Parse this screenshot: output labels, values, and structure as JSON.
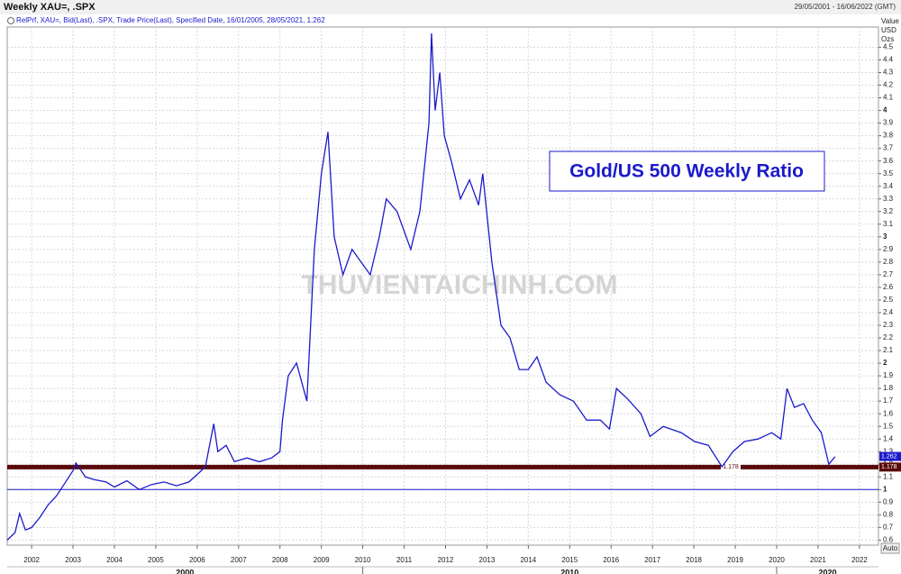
{
  "header": {
    "title": "Weekly XAU=, .SPX",
    "date_range": "29/05/2001 - 16/06/2022 (GMT)"
  },
  "chart_data": {
    "type": "line",
    "title": "Gold/US 500 Weekly Ratio",
    "legend_text": "RelPrf, XAU=, Bid(Last), .SPX, Trade Price(Last), Specified Date, 16/01/2005, 28/05/2021, 1.262",
    "y_axis_label": [
      "Value",
      "USD",
      "Ozs"
    ],
    "watermark": "THUVIENTAICHINH.COM",
    "scale_mode": "Auto",
    "grid": true,
    "xlim": [
      2001.41,
      2022.46
    ],
    "xticks": [
      2002,
      2003,
      2004,
      2005,
      2006,
      2007,
      2008,
      2009,
      2010,
      2011,
      2012,
      2013,
      2014,
      2015,
      2016,
      2017,
      2018,
      2019,
      2020,
      2021,
      2022
    ],
    "decades": [
      2000,
      2010,
      2020
    ],
    "ylim": [
      0.56,
      4.66
    ],
    "yticks": [
      0.6,
      0.7,
      0.8,
      0.9,
      1,
      1.1,
      1.2,
      1.3,
      1.4,
      1.5,
      1.6,
      1.7,
      1.8,
      1.9,
      2,
      2.1,
      2.2,
      2.3,
      2.4,
      2.5,
      2.6,
      2.7,
      2.8,
      2.9,
      3,
      3.1,
      3.2,
      3.3,
      3.4,
      3.5,
      3.6,
      3.7,
      3.8,
      3.9,
      4,
      4.1,
      4.2,
      4.3,
      4.4,
      4.5
    ],
    "baseline": 1,
    "support_level": 1.178,
    "last_value": 1.262,
    "series": [
      {
        "name": "Gold/US 500",
        "color": "#1a1acc",
        "x": [
          2001.41,
          2001.6,
          2001.71,
          2001.85,
          2002.0,
          2002.2,
          2002.4,
          2002.6,
          2002.8,
          2003.0,
          2003.07,
          2003.3,
          2003.5,
          2003.8,
          2004.0,
          2004.3,
          2004.6,
          2004.9,
          2005.2,
          2005.5,
          2005.8,
          2006.0,
          2006.2,
          2006.4,
          2006.5,
          2006.7,
          2006.9,
          2007.2,
          2007.5,
          2007.8,
          2008.0,
          2008.06,
          2008.2,
          2008.4,
          2008.65,
          2008.83,
          2009.0,
          2009.16,
          2009.31,
          2009.52,
          2009.74,
          2009.96,
          2010.18,
          2010.4,
          2010.57,
          2010.83,
          2011.16,
          2011.38,
          2011.6,
          2011.66,
          2011.75,
          2011.86,
          2011.97,
          2012.14,
          2012.36,
          2012.58,
          2012.8,
          2012.9,
          2013.12,
          2013.34,
          2013.56,
          2013.78,
          2014.0,
          2014.21,
          2014.43,
          2014.76,
          2015.09,
          2015.41,
          2015.74,
          2015.96,
          2016.13,
          2016.39,
          2016.72,
          2016.94,
          2017.26,
          2017.7,
          2018.02,
          2018.35,
          2018.68,
          2018.94,
          2019.22,
          2019.55,
          2019.88,
          2020.1,
          2020.25,
          2020.43,
          2020.65,
          2020.86,
          2021.08,
          2021.26,
          2021.41
        ],
        "values": [
          0.6,
          0.66,
          0.81,
          0.68,
          0.7,
          0.78,
          0.88,
          0.95,
          1.05,
          1.15,
          1.21,
          1.1,
          1.08,
          1.06,
          1.02,
          1.07,
          1.0,
          1.04,
          1.06,
          1.03,
          1.06,
          1.12,
          1.18,
          1.52,
          1.3,
          1.35,
          1.22,
          1.25,
          1.22,
          1.25,
          1.3,
          1.55,
          1.9,
          2.0,
          1.7,
          2.9,
          3.5,
          3.83,
          3.0,
          2.7,
          2.9,
          2.8,
          2.7,
          3.0,
          3.3,
          3.2,
          2.9,
          3.2,
          3.9,
          4.61,
          4.0,
          4.3,
          3.8,
          3.6,
          3.3,
          3.45,
          3.25,
          3.5,
          2.8,
          2.3,
          2.2,
          1.95,
          1.95,
          2.05,
          1.85,
          1.75,
          1.7,
          1.55,
          1.55,
          1.48,
          1.8,
          1.72,
          1.6,
          1.42,
          1.5,
          1.45,
          1.38,
          1.35,
          1.18,
          1.3,
          1.38,
          1.4,
          1.45,
          1.4,
          1.8,
          1.65,
          1.68,
          1.55,
          1.45,
          1.2,
          1.26
        ]
      }
    ]
  }
}
